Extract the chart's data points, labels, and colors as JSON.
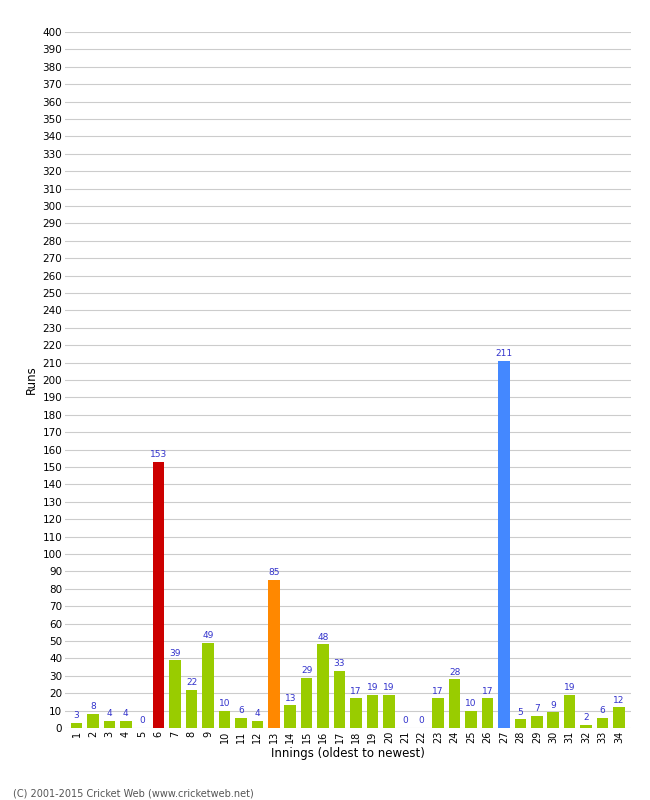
{
  "xlabel": "Innings (oldest to newest)",
  "ylabel": "Runs",
  "values": [
    3,
    8,
    4,
    4,
    0,
    153,
    39,
    22,
    49,
    10,
    6,
    4,
    85,
    13,
    29,
    48,
    33,
    17,
    19,
    19,
    0,
    0,
    17,
    28,
    10,
    17,
    211,
    5,
    7,
    9,
    19,
    2,
    6,
    12
  ],
  "innings": [
    1,
    2,
    3,
    4,
    5,
    6,
    7,
    8,
    9,
    10,
    11,
    12,
    13,
    14,
    15,
    16,
    17,
    18,
    19,
    20,
    21,
    22,
    23,
    24,
    25,
    26,
    27,
    28,
    29,
    30,
    31,
    32,
    33,
    34
  ],
  "colors": [
    "#99cc00",
    "#99cc00",
    "#99cc00",
    "#99cc00",
    "#99cc00",
    "#cc0000",
    "#99cc00",
    "#99cc00",
    "#99cc00",
    "#99cc00",
    "#99cc00",
    "#99cc00",
    "#ff8800",
    "#99cc00",
    "#99cc00",
    "#99cc00",
    "#99cc00",
    "#99cc00",
    "#99cc00",
    "#99cc00",
    "#99cc00",
    "#99cc00",
    "#99cc00",
    "#99cc00",
    "#99cc00",
    "#99cc00",
    "#4488ff",
    "#99cc00",
    "#99cc00",
    "#99cc00",
    "#99cc00",
    "#99cc00",
    "#99cc00",
    "#99cc00"
  ],
  "ylim": [
    0,
    400
  ],
  "ytick_step": 10,
  "label_color": "#3333cc",
  "bg_color": "#ffffff",
  "grid_color": "#cccccc",
  "footer": "(C) 2001-2015 Cricket Web (www.cricketweb.net)"
}
